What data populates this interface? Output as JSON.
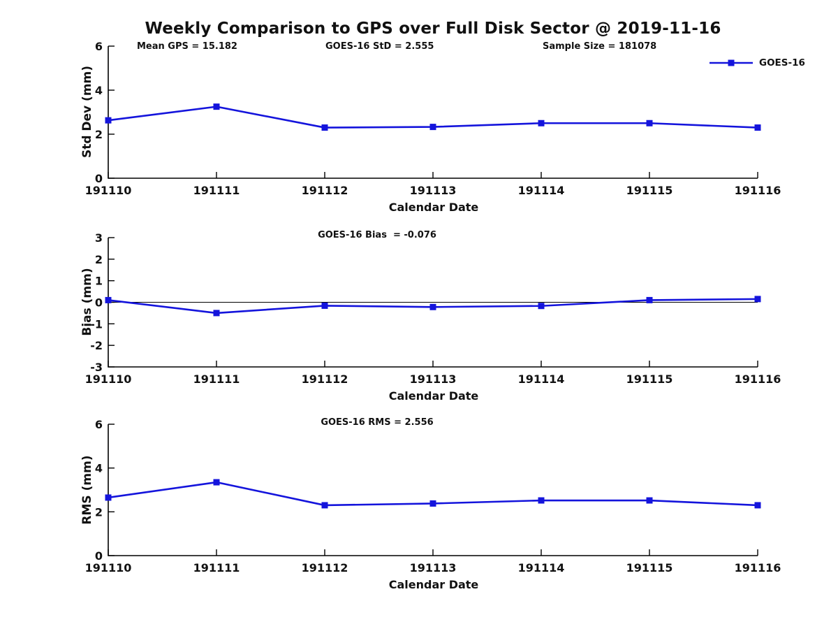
{
  "figure": {
    "title": "Weekly Comparison to GPS over Full Disk Sector @ 2019-11-16",
    "accent_color": "#1414dc",
    "text_color": "#111111",
    "legend": {
      "label": "GOES-16"
    }
  },
  "chart_data": [
    {
      "type": "line",
      "x": [
        "191110",
        "191111",
        "191112",
        "191113",
        "191114",
        "191115",
        "191116"
      ],
      "series": [
        {
          "name": "GOES-16",
          "marker": "square",
          "values": [
            2.63,
            3.25,
            2.3,
            2.33,
            2.5,
            2.5,
            2.3
          ]
        }
      ],
      "annotations": [
        "Mean GPS = 15.182",
        "GOES-16 StD = 2.555",
        "Sample Size = 181078"
      ],
      "xlabel": "Calendar Date",
      "ylabel": "Std Dev (mm)",
      "ylim": [
        0,
        6
      ],
      "yticks": [
        0,
        2,
        4,
        6
      ],
      "zero_line": false,
      "grid": false,
      "legend_position": "upper-right-outside"
    },
    {
      "type": "line",
      "x": [
        "191110",
        "191111",
        "191112",
        "191113",
        "191114",
        "191115",
        "191116"
      ],
      "series": [
        {
          "name": "GOES-16",
          "marker": "square",
          "values": [
            0.1,
            -0.5,
            -0.16,
            -0.22,
            -0.17,
            0.1,
            0.15
          ]
        }
      ],
      "annotations": [
        "GOES-16 Bias  = -0.076"
      ],
      "xlabel": "Calendar Date",
      "ylabel": "Bias (mm)",
      "ylim": [
        -3,
        3
      ],
      "yticks": [
        -3,
        -2,
        -1,
        0,
        1,
        2,
        3
      ],
      "zero_line": true,
      "grid": false
    },
    {
      "type": "line",
      "x": [
        "191110",
        "191111",
        "191112",
        "191113",
        "191114",
        "191115",
        "191116"
      ],
      "series": [
        {
          "name": "GOES-16",
          "marker": "square",
          "values": [
            2.65,
            3.35,
            2.3,
            2.38,
            2.52,
            2.52,
            2.3
          ]
        }
      ],
      "annotations": [
        "GOES-16 RMS = 2.556"
      ],
      "xlabel": "Calendar Date",
      "ylabel": "RMS (mm)",
      "ylim": [
        0,
        6
      ],
      "yticks": [
        0,
        2,
        4,
        6
      ],
      "zero_line": false,
      "grid": false
    }
  ]
}
